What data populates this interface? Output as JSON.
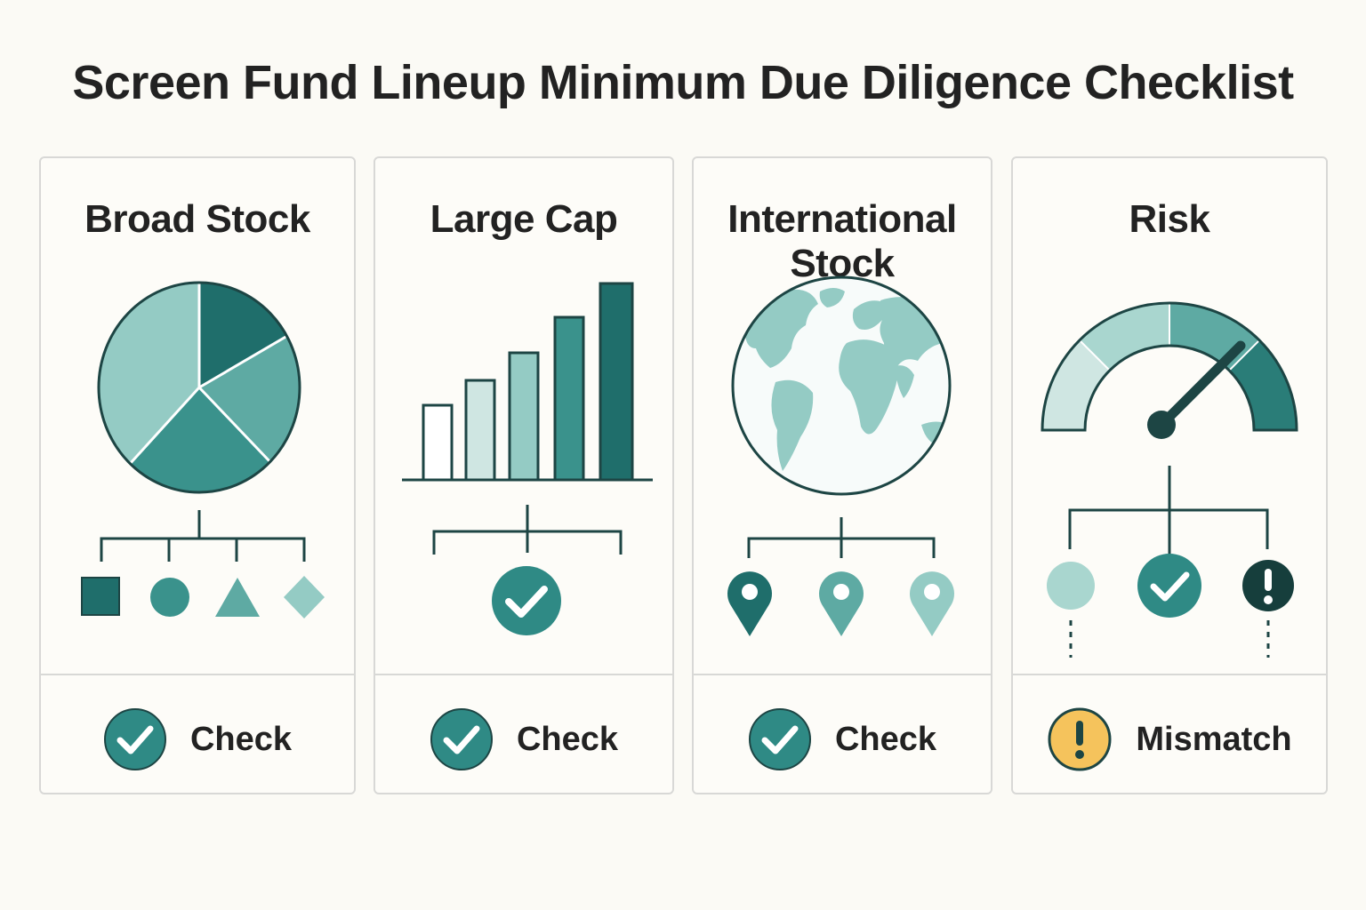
{
  "title": "Screen Fund Lineup Minimum Due Diligence Checklist",
  "colors": {
    "teal_dark": "#1f6e6b",
    "teal": "#2f8a85",
    "teal_mid": "#5eaaa3",
    "teal_light": "#94cbc4",
    "teal_pale": "#cfe6e2",
    "warning": "#f5c35c",
    "ink": "#1d4544"
  },
  "cards": [
    {
      "title": "Broad Stock",
      "icon": "pie-chart-icon",
      "status_icon": "check-circle-icon",
      "status": "Check"
    },
    {
      "title": "Large Cap",
      "icon": "bar-chart-icon",
      "status_icon": "check-circle-icon",
      "status": "Check"
    },
    {
      "title": "International Stock",
      "icon": "globe-icon",
      "status_icon": "check-circle-icon",
      "status": "Check"
    },
    {
      "title": "Risk",
      "icon": "gauge-icon",
      "status_icon": "warning-icon",
      "status": "Mismatch"
    }
  ]
}
